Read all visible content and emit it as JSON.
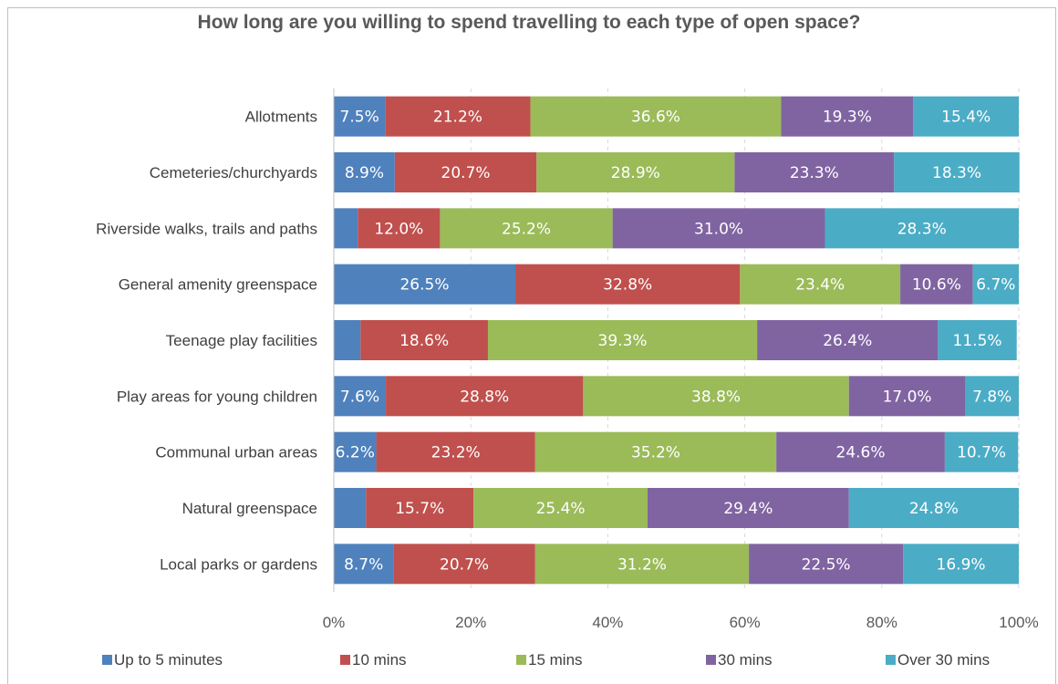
{
  "chart_data": {
    "type": "bar",
    "orientation": "horizontal",
    "stacked": "percent",
    "title": "How long are you willing to spend travelling to each type of open space?",
    "categories": [
      "Allotments",
      "Cemeteries/churchyards",
      "Riverside walks, trails and paths",
      "General amenity greenspace",
      "Teenage play facilities",
      "Play areas for young children",
      "Communal urban areas",
      "Natural greenspace",
      "Local parks or gardens"
    ],
    "series": [
      {
        "name": "Up to 5 minutes",
        "color": "#4F81BD",
        "values": [
          7.5,
          8.9,
          3.5,
          26.5,
          3.9,
          7.6,
          6.2,
          4.7,
          8.7
        ]
      },
      {
        "name": "10 mins",
        "color": "#C0504D",
        "values": [
          21.2,
          20.7,
          12.0,
          32.8,
          18.6,
          28.8,
          23.2,
          15.7,
          20.7
        ]
      },
      {
        "name": "15 mins",
        "color": "#9BBB59",
        "values": [
          36.6,
          28.9,
          25.2,
          23.4,
          39.3,
          38.8,
          35.2,
          25.4,
          31.2
        ]
      },
      {
        "name": "30 mins",
        "color": "#8064A2",
        "values": [
          19.3,
          23.3,
          31.0,
          10.6,
          26.4,
          17.0,
          24.6,
          29.4,
          22.5
        ]
      },
      {
        "name": "Over 30 mins",
        "color": "#4BACC6",
        "values": [
          15.4,
          18.3,
          28.3,
          6.7,
          11.5,
          7.8,
          10.7,
          24.8,
          16.9
        ]
      }
    ],
    "data_labels": [
      [
        "7.5%",
        "21.2%",
        "36.6%",
        "19.3%",
        "15.4%"
      ],
      [
        "8.9%",
        "20.7%",
        "28.9%",
        "23.3%",
        "18.3%"
      ],
      [
        "",
        "12.0%",
        "25.2%",
        "31.0%",
        "28.3%"
      ],
      [
        "26.5%",
        "32.8%",
        "23.4%",
        "10.6%",
        "6.7%"
      ],
      [
        "",
        "18.6%",
        "39.3%",
        "26.4%",
        "11.5%"
      ],
      [
        "7.6%",
        "28.8%",
        "38.8%",
        "17.0%",
        "7.8%"
      ],
      [
        "6.2%",
        "23.2%",
        "35.2%",
        "24.6%",
        "10.7%"
      ],
      [
        "",
        "15.7%",
        "25.4%",
        "29.4%",
        "24.8%"
      ],
      [
        "8.7%",
        "20.7%",
        "31.2%",
        "22.5%",
        "16.9%"
      ]
    ],
    "x_ticks": [
      "0%",
      "20%",
      "40%",
      "60%",
      "80%",
      "100%"
    ],
    "xlim": [
      0,
      100
    ],
    "grid": "vertical dashed",
    "legend_position": "bottom"
  }
}
